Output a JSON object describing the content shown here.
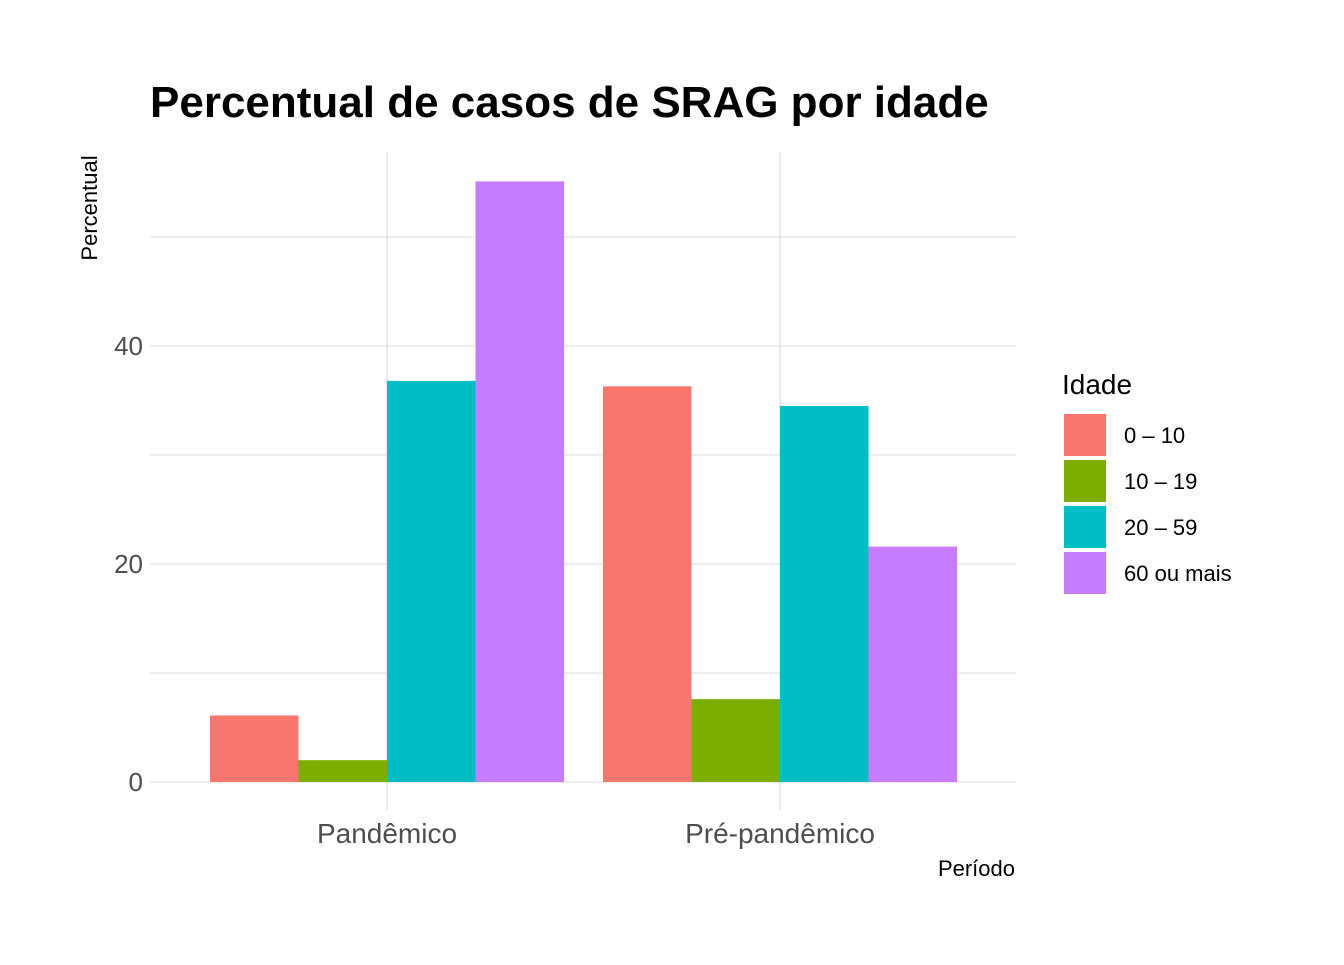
{
  "chart_data": {
    "type": "bar",
    "title": "Percentual de casos de SRAG por idade",
    "xlabel": "Período",
    "ylabel": "Percentual",
    "categories": [
      "Pandêmico",
      "Pré-pandêmico"
    ],
    "y_ticks": [
      "0",
      "20",
      "40"
    ],
    "ylim": [
      0,
      55
    ],
    "grid": true,
    "legend": {
      "title": "Idade",
      "placement": "right"
    },
    "series": [
      {
        "name": "0 – 10",
        "color": "#F8766D",
        "values": [
          6.1,
          36.3
        ]
      },
      {
        "name": "10 – 19",
        "color": "#7CAE00",
        "values": [
          2.0,
          7.6
        ]
      },
      {
        "name": "20 – 59",
        "color": "#00BFC4",
        "values": [
          36.8,
          34.5
        ]
      },
      {
        "name": "60 ou mais",
        "color": "#C77CFF",
        "values": [
          55.1,
          21.6
        ]
      }
    ]
  }
}
